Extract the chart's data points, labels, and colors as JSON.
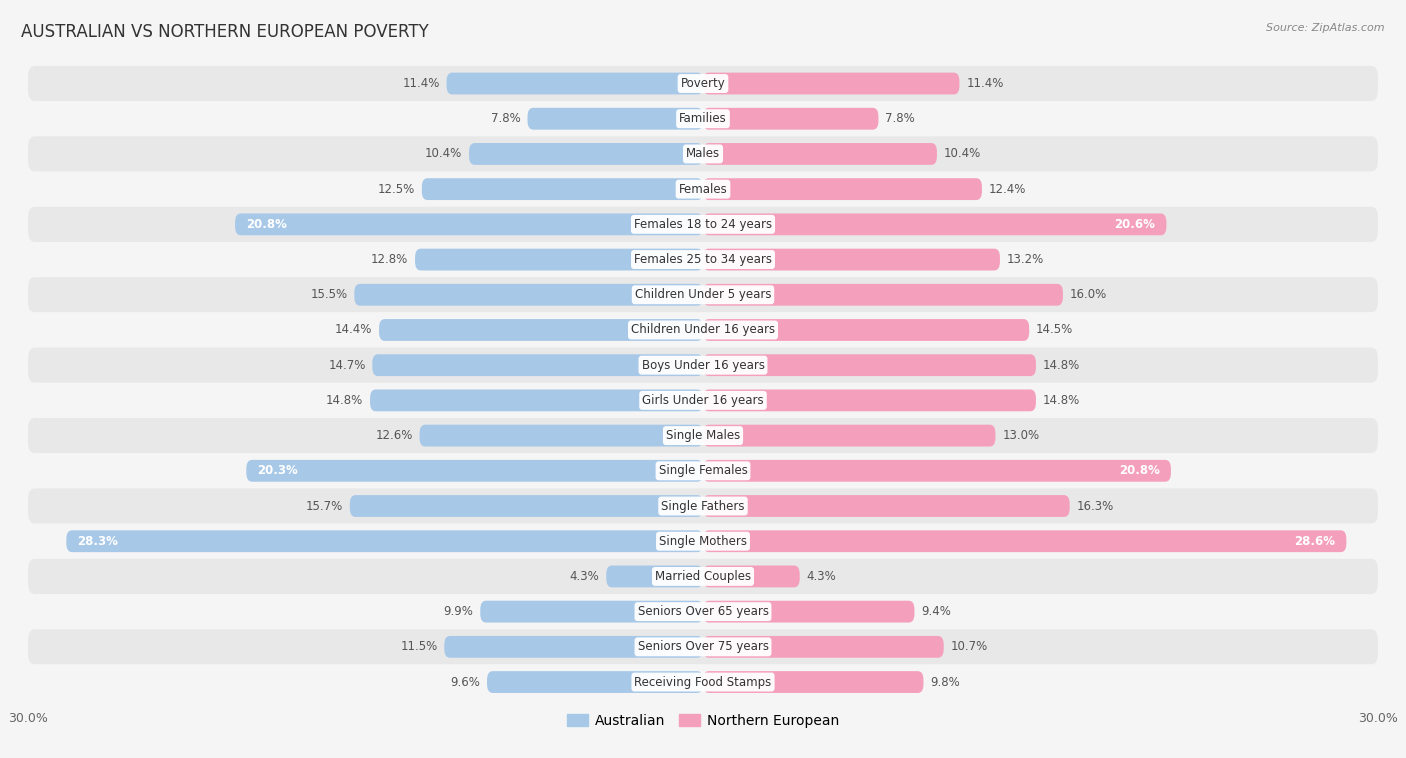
{
  "title": "AUSTRALIAN VS NORTHERN EUROPEAN POVERTY",
  "source_text": "Source: ZipAtlas.com",
  "categories": [
    "Poverty",
    "Families",
    "Males",
    "Females",
    "Females 18 to 24 years",
    "Females 25 to 34 years",
    "Children Under 5 years",
    "Children Under 16 years",
    "Boys Under 16 years",
    "Girls Under 16 years",
    "Single Males",
    "Single Females",
    "Single Fathers",
    "Single Mothers",
    "Married Couples",
    "Seniors Over 65 years",
    "Seniors Over 75 years",
    "Receiving Food Stamps"
  ],
  "australian": [
    11.4,
    7.8,
    10.4,
    12.5,
    20.8,
    12.8,
    15.5,
    14.4,
    14.7,
    14.8,
    12.6,
    20.3,
    15.7,
    28.3,
    4.3,
    9.9,
    11.5,
    9.6
  ],
  "northern_european": [
    11.4,
    7.8,
    10.4,
    12.4,
    20.6,
    13.2,
    16.0,
    14.5,
    14.8,
    14.8,
    13.0,
    20.8,
    16.3,
    28.6,
    4.3,
    9.4,
    10.7,
    9.8
  ],
  "australian_color": "#a8c8e8",
  "northern_european_color": "#f4a0bc",
  "row_color_even": "#e8e8e8",
  "row_color_odd": "#f5f5f5",
  "background_color": "#f5f5f5",
  "xlim": 30.0,
  "bar_height": 0.62,
  "high_threshold": 18.0,
  "legend_labels": [
    "Australian",
    "Northern European"
  ],
  "title_fontsize": 12,
  "label_fontsize": 8.5,
  "value_fontsize": 8.5
}
